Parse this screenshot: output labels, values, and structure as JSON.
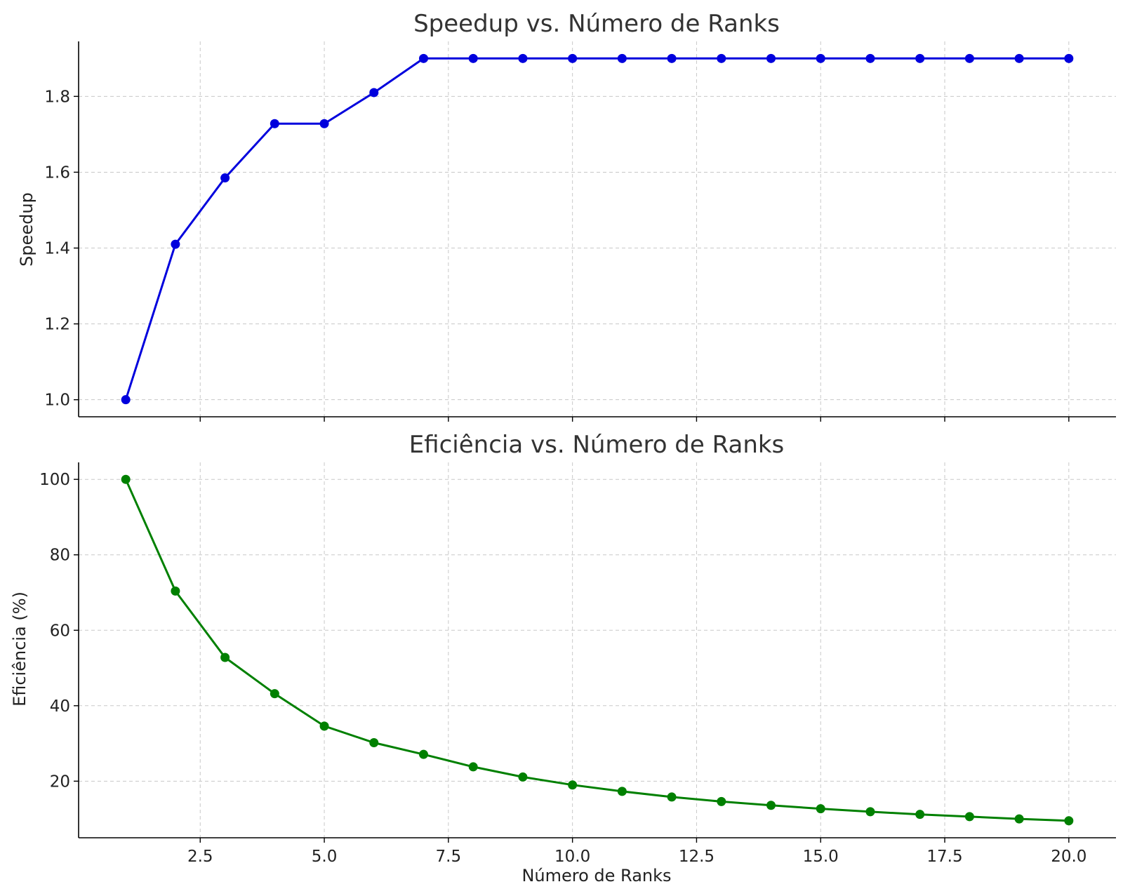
{
  "chart_data": [
    {
      "type": "line",
      "title": "Speedup vs. Número de Ranks",
      "xlabel": "",
      "ylabel": "Speedup",
      "grid": true,
      "xlim": [
        0.05,
        20.95
      ],
      "ylim": [
        0.955,
        1.945
      ],
      "x_ticks": [
        2.5,
        5.0,
        7.5,
        10.0,
        12.5,
        15.0,
        17.5,
        20.0
      ],
      "x_tick_labels": [
        "",
        "",
        "",
        "",
        "",
        "",
        "",
        ""
      ],
      "y_ticks": [
        1.0,
        1.2,
        1.4,
        1.6,
        1.8
      ],
      "y_tick_labels": [
        "1.0",
        "1.2",
        "1.4",
        "1.6",
        "1.8"
      ],
      "color": "#0000dd",
      "series": [
        {
          "x": [
            1,
            2,
            3,
            4,
            5,
            6,
            7,
            8,
            9,
            10,
            11,
            12,
            13,
            14,
            15,
            16,
            17,
            18,
            19,
            20
          ],
          "values": [
            1.0,
            1.41,
            1.585,
            1.728,
            1.728,
            1.81,
            1.9,
            1.9,
            1.9,
            1.9,
            1.9,
            1.9,
            1.9,
            1.9,
            1.9,
            1.9,
            1.9,
            1.9,
            1.9,
            1.9
          ]
        }
      ]
    },
    {
      "type": "line",
      "title": "Eficiência vs. Número de Ranks",
      "xlabel": "Número de Ranks",
      "ylabel": "Eficiência (%)",
      "grid": true,
      "xlim": [
        0.05,
        20.95
      ],
      "ylim": [
        5.0,
        104.5
      ],
      "x_ticks": [
        2.5,
        5.0,
        7.5,
        10.0,
        12.5,
        15.0,
        17.5,
        20.0
      ],
      "x_tick_labels": [
        "2.5",
        "5.0",
        "7.5",
        "10.0",
        "12.5",
        "15.0",
        "17.5",
        "20.0"
      ],
      "y_ticks": [
        20,
        40,
        60,
        80,
        100
      ],
      "y_tick_labels": [
        "20",
        "40",
        "60",
        "80",
        "100"
      ],
      "color": "#008000",
      "series": [
        {
          "x": [
            1,
            2,
            3,
            4,
            5,
            6,
            7,
            8,
            9,
            10,
            11,
            12,
            13,
            14,
            15,
            16,
            17,
            18,
            19,
            20
          ],
          "values": [
            100,
            70.4,
            52.8,
            43.2,
            34.6,
            30.2,
            27.1,
            23.8,
            21.1,
            19.0,
            17.3,
            15.8,
            14.6,
            13.6,
            12.7,
            11.9,
            11.2,
            10.6,
            10.0,
            9.5
          ]
        }
      ]
    }
  ]
}
